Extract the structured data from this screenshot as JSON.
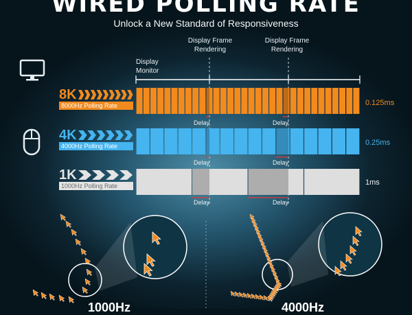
{
  "header": {
    "title": "WIRED POLLING RATE",
    "subtitle": "Unlock a New Standard of Responsiveness"
  },
  "column_labels": {
    "display_monitor": "Display\nMonitor",
    "frame_rendering_1": "Display Frame\nRendering",
    "frame_rendering_2": "Display Frame\nRendering"
  },
  "rows": [
    {
      "big": "8K",
      "badge": "8000Hz Polling Rate",
      "value": "0.125ms",
      "segments": 32,
      "color": "#f28a1e",
      "badge_bg": "#f28a1e",
      "badge_fg": "#ffffff"
    },
    {
      "big": "4K",
      "badge": "4000Hz Polling Rate",
      "value": "0.25ms",
      "segments": 16,
      "color": "#45b4ef",
      "badge_bg": "#45b4ef",
      "badge_fg": "#ffffff"
    },
    {
      "big": "1K",
      "badge": "1000Hz Polling Rate",
      "value": "1ms",
      "segments": 4,
      "color": "#dedede",
      "badge_bg": "#e4e4e4",
      "badge_fg": "#6a6a6a"
    }
  ],
  "delay_label": "Delay",
  "bottom": {
    "left_label": "1000Hz",
    "right_label": "4000Hz"
  },
  "colors": {
    "accent_orange": "#f28a1e",
    "accent_blue": "#45b4ef",
    "neutral_gray": "#dedede"
  },
  "icons": {
    "display": "monitor-icon",
    "input": "mouse-icon"
  }
}
